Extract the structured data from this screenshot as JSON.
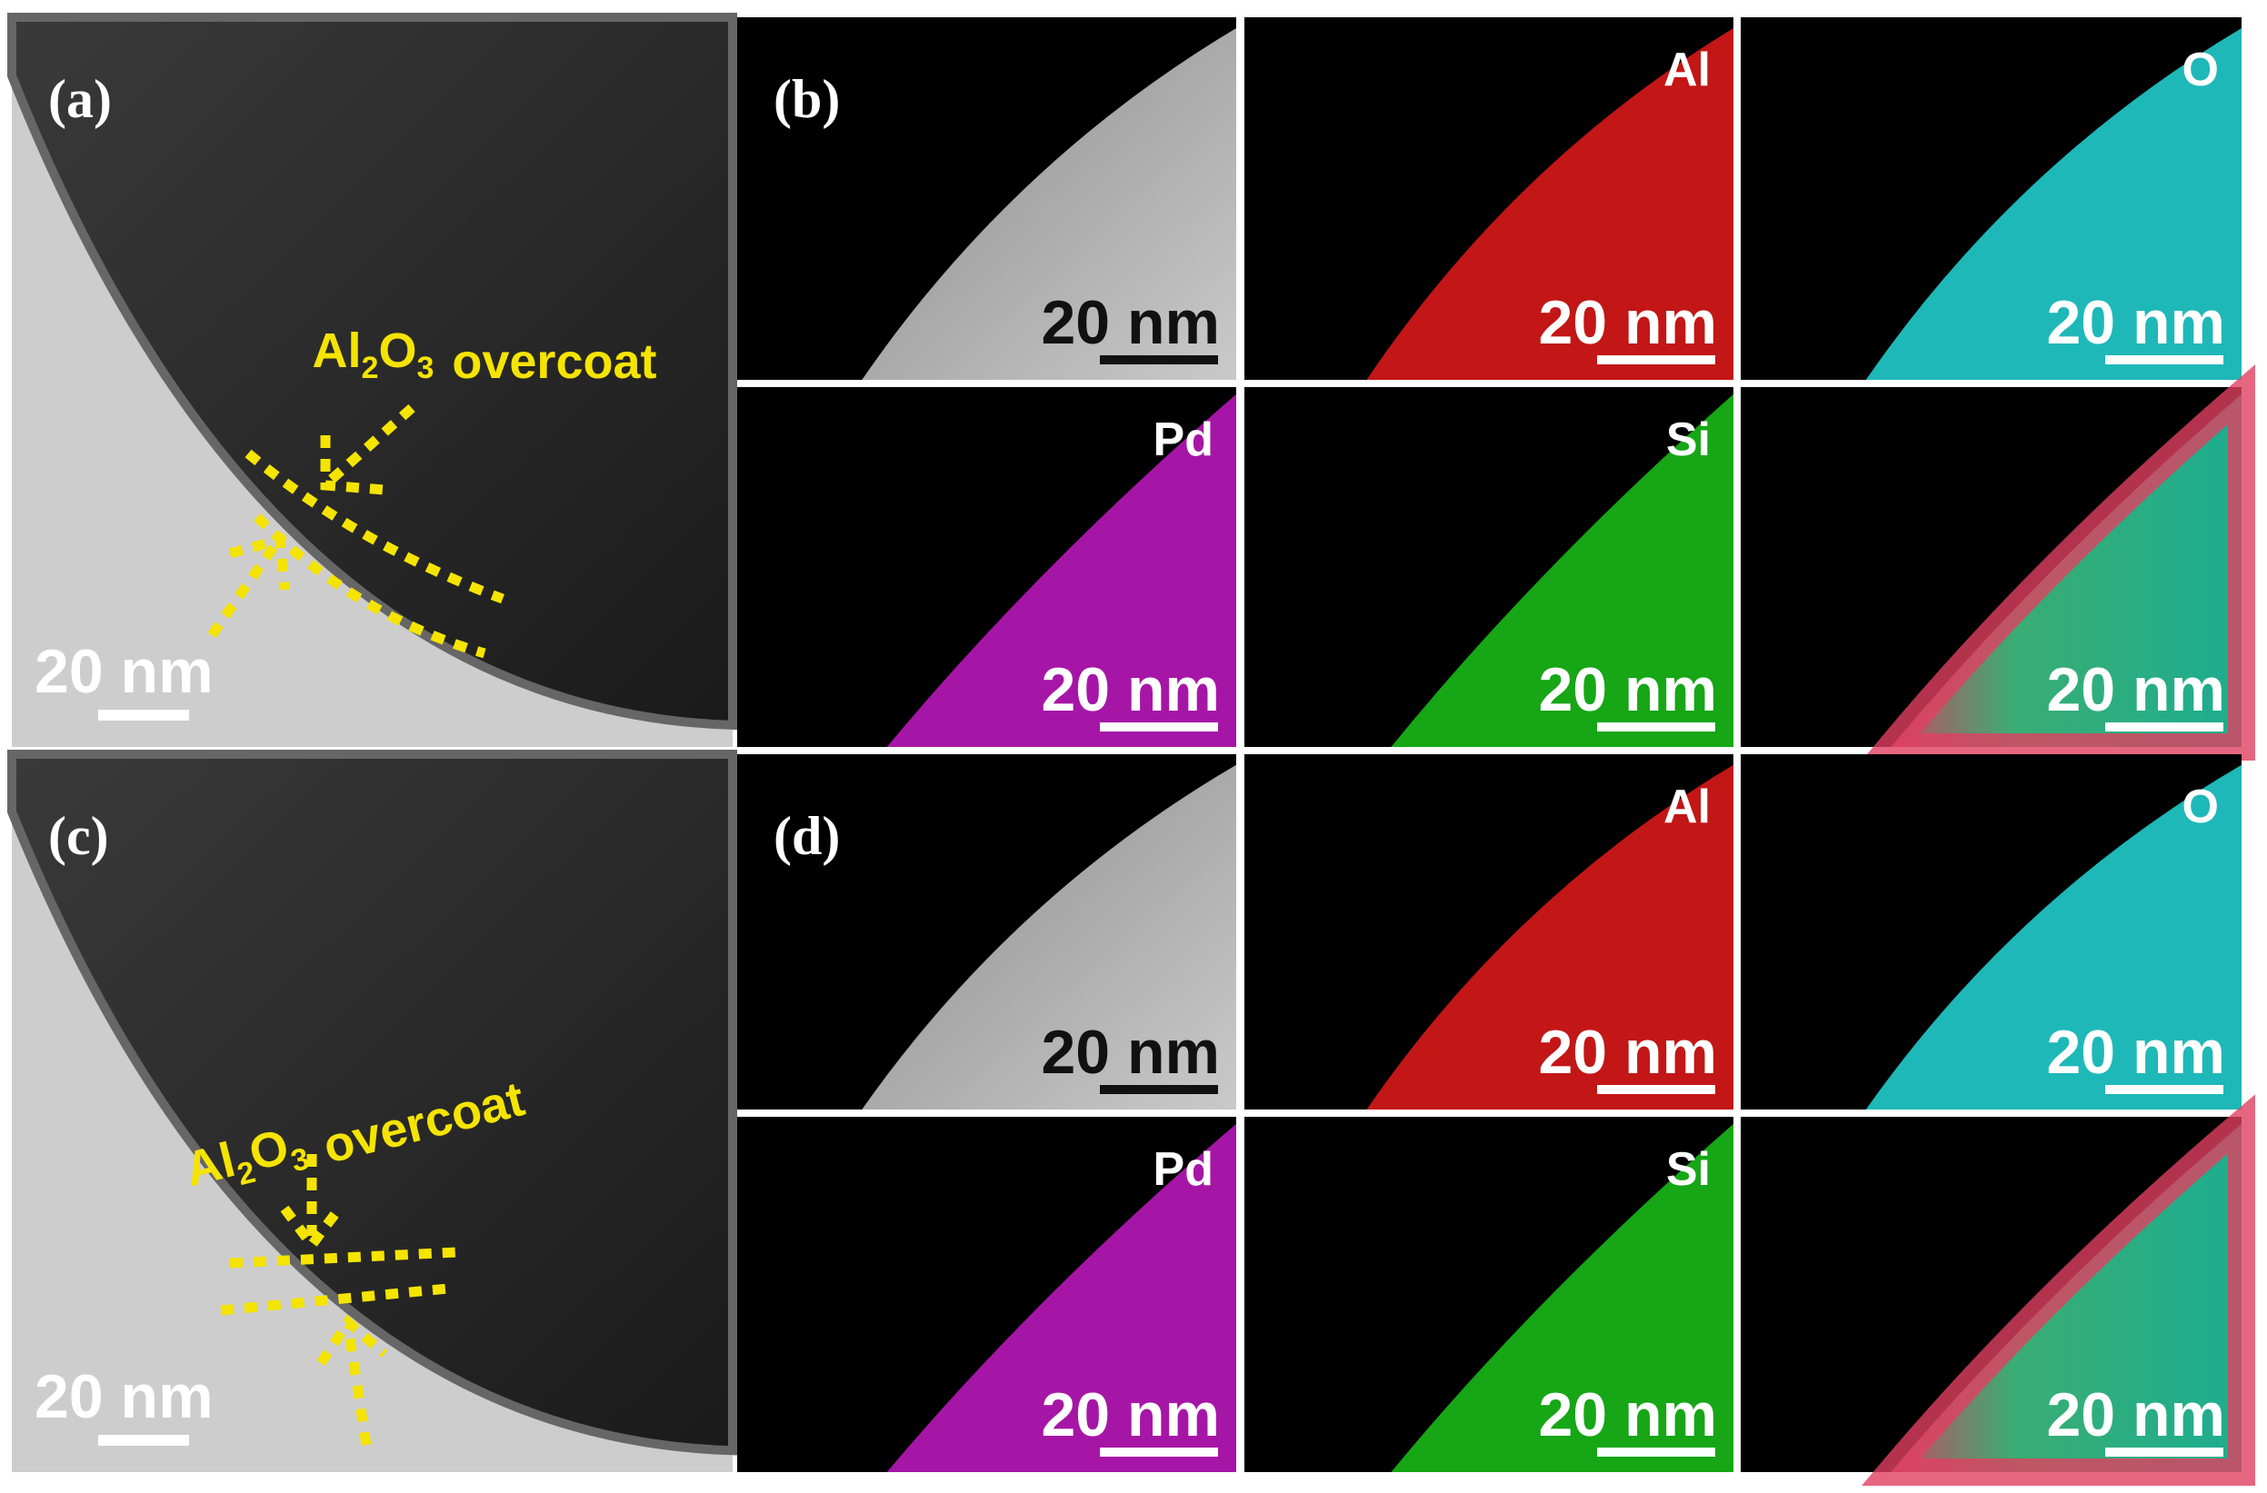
{
  "panels": [
    {
      "label": "(a)",
      "annotation": {
        "formula": [
          "Al",
          "2",
          "O",
          "3"
        ],
        "text": "overcoat"
      },
      "scale_bar": "20 nm"
    },
    {
      "label": "(b)",
      "maps": [
        {
          "scale_bar": "20 nm"
        },
        {
          "element": "Al",
          "scale_bar": "20 nm"
        },
        {
          "element": "O",
          "scale_bar": "20 nm"
        },
        {
          "element": "Pd",
          "scale_bar": "20 nm"
        },
        {
          "element": "Si",
          "scale_bar": "20 nm"
        },
        {
          "scale_bar": "20 nm"
        }
      ]
    },
    {
      "label": "(c)",
      "annotation": {
        "formula": [
          "Al",
          "2",
          "O",
          "3"
        ],
        "text": "overcoat"
      },
      "scale_bar": "20 nm"
    },
    {
      "label": "(d)",
      "maps": [
        {
          "scale_bar": "20 nm"
        },
        {
          "element": "Al",
          "scale_bar": "20 nm"
        },
        {
          "element": "O",
          "scale_bar": "20 nm"
        },
        {
          "element": "Pd",
          "scale_bar": "20 nm"
        },
        {
          "element": "Si",
          "scale_bar": "20 nm"
        },
        {
          "scale_bar": "20 nm"
        }
      ]
    }
  ]
}
